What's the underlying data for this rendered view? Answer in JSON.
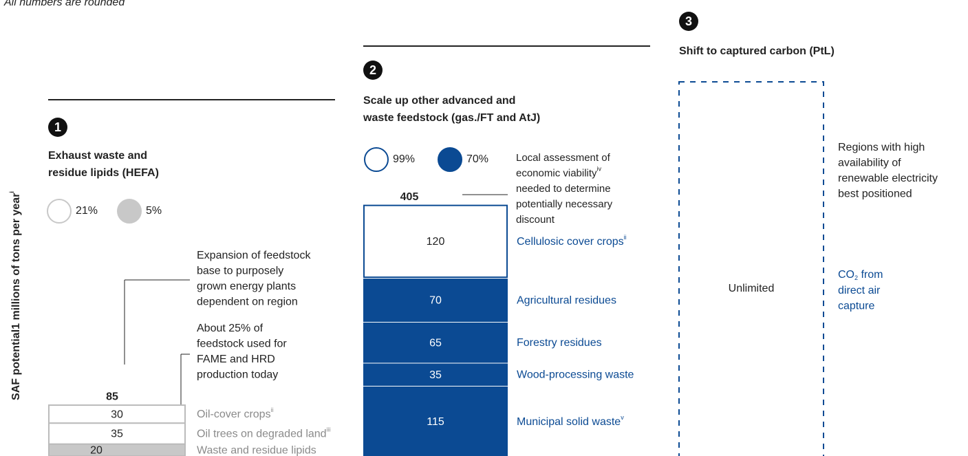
{
  "note": "All numbers are rounded",
  "y_axis_label": {
    "text": "SAF potential1 millions of tons per year",
    "note": "i"
  },
  "columns": [
    {
      "number": "1",
      "title": [
        "Exhaust waste and",
        "residue lipids (HEFA)"
      ],
      "shares": [
        {
          "value": 21,
          "label": "21%"
        },
        {
          "value": 5,
          "label": "5%"
        }
      ],
      "total": 85,
      "segments": [
        {
          "value": 20,
          "label": "Waste and residue lipids"
        },
        {
          "value": 35,
          "label": "Oil trees on degraded land",
          "note": "iii"
        },
        {
          "value": 30,
          "label": "Oil-cover crops",
          "note": "ii"
        }
      ],
      "annotations": [
        {
          "lines": [
            "Expansion of feedstock",
            "base to purposely",
            "grown energy plants",
            "dependent on region"
          ]
        },
        {
          "lines": [
            "About 25% of",
            "feedstock used for",
            "FAME and HRD",
            "production today"
          ]
        }
      ]
    },
    {
      "number": "2",
      "title": [
        "Scale up other advanced and",
        "waste feedstock (gas./FT and AtJ)"
      ],
      "shares": [
        {
          "value": 99,
          "label": "99%"
        },
        {
          "value": 70,
          "label": "70%"
        }
      ],
      "total": 405,
      "segments": [
        {
          "value": 115,
          "label": "Municipal solid waste",
          "note": "v"
        },
        {
          "value": 35,
          "label": "Wood-processing waste"
        },
        {
          "value": 65,
          "label": "Forestry residues"
        },
        {
          "value": 70,
          "label": "Agricultural residues"
        },
        {
          "value": 120,
          "label": "Cellulosic cover crops",
          "note": "ii"
        }
      ],
      "annotations": [
        {
          "lines": [
            "Local assessment of",
            "economic viability",
            "needed to determine",
            "potentially necessary",
            "discount"
          ],
          "note": "iv"
        }
      ]
    },
    {
      "number": "3",
      "title": [
        "Shift to captured carbon (PtL)"
      ],
      "potential": "Unlimited",
      "source": {
        "lines": [
          "CO",
          " from",
          "direct air",
          "capture"
        ],
        "sub": "2"
      },
      "annotations": [
        {
          "lines": [
            "Regions with high",
            "availability of",
            "renewable electricity",
            "best positioned"
          ]
        }
      ]
    }
  ]
}
